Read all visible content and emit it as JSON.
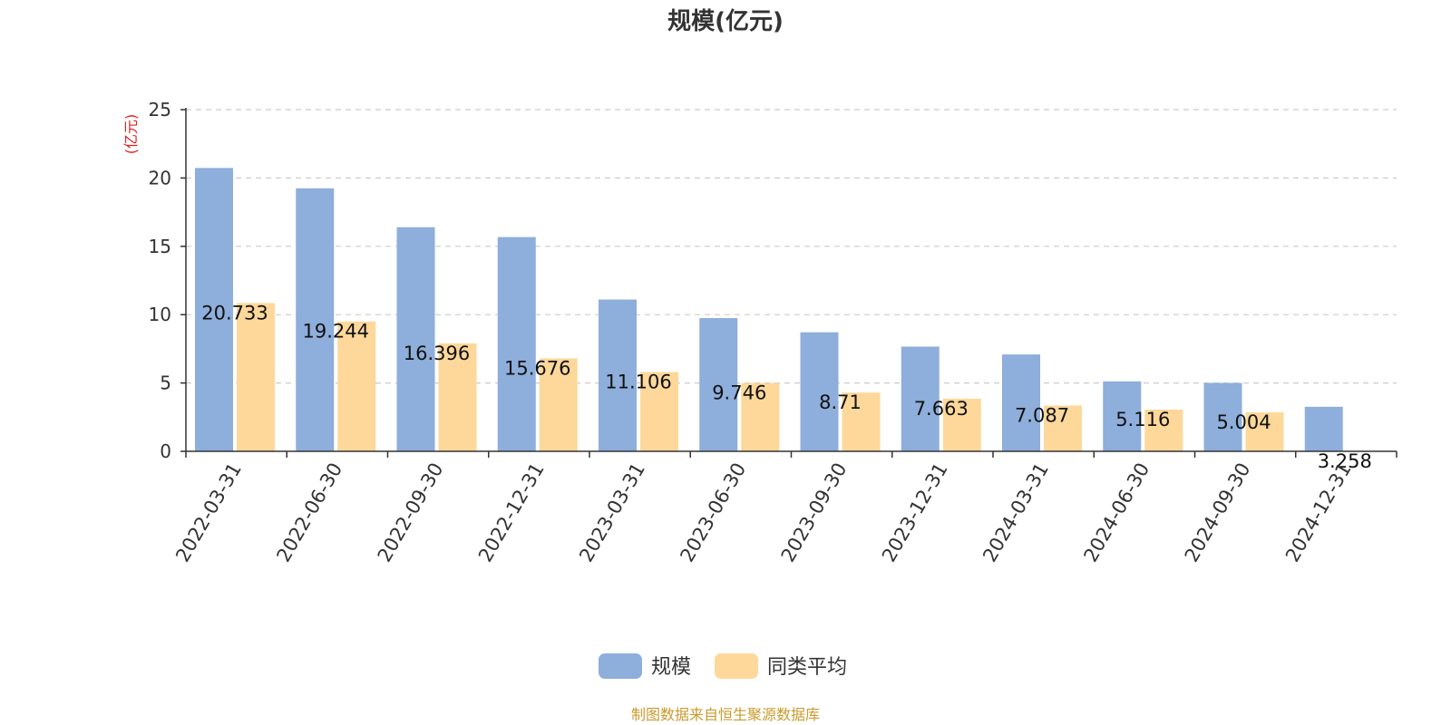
{
  "chart_data": {
    "type": "bar",
    "title": "规模(亿元)",
    "ylabel": "(亿元)",
    "ylim": [
      0,
      25
    ],
    "yticks": [
      0,
      5,
      10,
      15,
      20,
      25
    ],
    "grid": true,
    "legend_position": "bottom",
    "categories": [
      "2022-03-31",
      "2022-06-30",
      "2022-09-30",
      "2022-12-31",
      "2023-03-31",
      "2023-06-30",
      "2023-09-30",
      "2023-12-31",
      "2024-03-31",
      "2024-06-30",
      "2024-09-30",
      "2024-12-31"
    ],
    "series": [
      {
        "name": "规模",
        "color": "#8eaedb",
        "values": [
          20.733,
          19.244,
          16.396,
          15.676,
          11.106,
          9.746,
          8.71,
          7.663,
          7.087,
          5.116,
          5.004,
          3.258
        ],
        "labels": [
          "20.733",
          "19.244",
          "16.396",
          "15.676",
          "11.106",
          "9.746",
          "8.71",
          "7.663",
          "7.087",
          "5.116",
          "5.004",
          "3.258"
        ]
      },
      {
        "name": "同类平均",
        "color": "#fdd89a",
        "values": [
          10.85,
          9.5,
          7.9,
          6.8,
          5.8,
          5.0,
          4.3,
          3.85,
          3.35,
          3.05,
          2.85,
          null
        ]
      }
    ],
    "source": "制图数据来自恒生聚源数据库",
    "unit_color": "#e02020",
    "source_color": "#c99a2e"
  }
}
